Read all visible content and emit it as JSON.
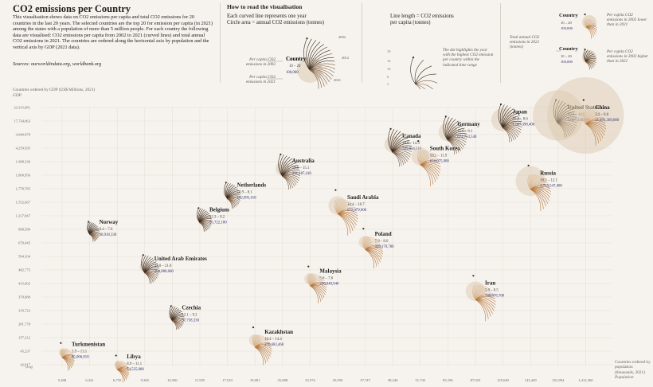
{
  "header": {
    "title": "CO2 emissions per Country",
    "intro": "This visualisation shows data on CO2 emissions per capita and total CO2 emissions for 20 countries in the last 20 years. The selected countries are the top 20 for emission per capita (in 2021) among the states with a population of more than 5 million people. For each country the following data are visualised: CO2 emissions per capita from 2002 to 2021 (curved lines) and total annual CO2 emissions in 2021. The countries are ordered along the horizontal axis by population and the vertical axis by GDP (2021 data).",
    "sources": "Sources: ourworldindata.org, worldbank.org"
  },
  "howto": {
    "title": "How to read the visualisation",
    "line1": "Each curved line represents one year",
    "line2": "Circle area = annual CO2 emissions (tonnes)",
    "line3": "Line length = CO2 emissions",
    "line4": "per capita (tonnes)",
    "example_country": "Country",
    "example_range": "10 – 20",
    "example_total": "100,000",
    "year_2002": "2002",
    "year_2012": "2012",
    "year_2021": "2021",
    "note_2002": "Per capita CO2 emissions in 2002",
    "note_2021": "Per capita CO2 emissions in 2021",
    "dot_note": "The dot highlights the year with the highest CO2 emission per country within the indicated time range",
    "scale_ticks": [
      "18",
      "14",
      "10",
      "6",
      "2"
    ]
  },
  "legend": {
    "country": "Country",
    "range": "10 – 20",
    "total": "100,000",
    "total_note": "Total annual CO2 emissions in 2021 (tonnes)",
    "lower_note": "Per capita CO2 emissions in 2002 lower than in 2021",
    "higher_note": "Per capita CO2 emissions in 2002 higher than in 2021"
  },
  "axes": {
    "y_title": "Countries ordered by GDP (US$ Millions, 2021)",
    "y_unit": "GDP",
    "y_ticks": [
      "23,315,081",
      "17,734,063",
      "4,940,878",
      "4,259,935",
      "1,988,336",
      "1,800,956",
      "1,778,785",
      "1,552,667",
      "1,317,847",
      "868,586",
      "679,445",
      "594,104",
      "482,775",
      "415,002",
      "370,680",
      "319,723",
      "281,778",
      "157,212",
      "45,237",
      "42,817"
    ],
    "y_bottom_note": "(avg)",
    "x_title": "Countries ordered by population (thousands, 2021)",
    "x_unit": "Population",
    "x_ticks": [
      "5,408",
      "6,341",
      "6,735",
      "9,365",
      "10,506",
      "11,935",
      "17,533",
      "19,001",
      "25,688",
      "33,574",
      "35,950",
      "37,747",
      "38,246",
      "51,745",
      "83,196",
      "87,923",
      "125,682",
      "143,449",
      "331,894",
      "1,412,360"
    ]
  },
  "chart_data": {
    "type": "scatter",
    "title": "CO2 emissions per Country",
    "xlabel": "Countries ordered by population (thousands, 2021)",
    "ylabel": "Countries ordered by GDP (US$ Millions, 2021)",
    "points": [
      {
        "name": "Turkmenistan",
        "range": "5.9 – 13.1",
        "total": "85,006,810",
        "x_rank": 1,
        "y_rank": 2,
        "trend": "up",
        "emis": 85006810
      },
      {
        "name": "Norway",
        "range": "9.4 – 7.6",
        "total": "40,918,330",
        "x_rank": 2,
        "y_rank": 12,
        "trend": "down",
        "emis": 40918330
      },
      {
        "name": "Libya",
        "range": "8.9 – 11.1",
        "total": "74,525,080",
        "x_rank": 3,
        "y_rank": 1,
        "trend": "up",
        "emis": 74525080
      },
      {
        "name": "United Arab Emirates",
        "range": "23.0 – 21.8",
        "total": "204,086,660",
        "x_rank": 4,
        "y_rank": 9,
        "trend": "down",
        "emis": 204086660
      },
      {
        "name": "Czechia",
        "range": "12.1 – 9.2",
        "total": "97,758,330",
        "x_rank": 5,
        "y_rank": 5,
        "trend": "down",
        "emis": 97758330
      },
      {
        "name": "Belgium",
        "range": "12.3 – 8.2",
        "total": "95,722,180",
        "x_rank": 6,
        "y_rank": 13,
        "trend": "down",
        "emis": 95722180
      },
      {
        "name": "Netherlands",
        "range": "10.9 – 8.1",
        "total": "142,095,410",
        "x_rank": 7,
        "y_rank": 15,
        "trend": "down",
        "emis": 142095410
      },
      {
        "name": "Kazakhstan",
        "range": "10.4 – 14.4",
        "total": "276,683,460",
        "x_rank": 8,
        "y_rank": 3,
        "trend": "up",
        "emis": 276683460
      },
      {
        "name": "Australia",
        "range": "18.6 – 15.1",
        "total": "391,187,410",
        "x_rank": 9,
        "y_rank": 17,
        "trend": "down",
        "emis": 391187410
      },
      {
        "name": "Malaysia",
        "range": "5.6 – 7.6",
        "total": "256,048,940",
        "x_rank": 10,
        "y_rank": 8,
        "trend": "up",
        "emis": 256048940
      },
      {
        "name": "Saudi Arabia",
        "range": "14.4 – 18.7",
        "total": "672,379,900",
        "x_rank": 11,
        "y_rank": 14,
        "trend": "up",
        "emis": 672379900
      },
      {
        "name": "Poland",
        "range": "7.9 – 8.6",
        "total": "328,179,780",
        "x_rank": 12,
        "y_rank": 11,
        "trend": "up",
        "emis": 328179780
      },
      {
        "name": "Canada",
        "range": "18.0 – 14.3",
        "total": "545,634,510",
        "x_rank": 13,
        "y_rank": 19,
        "trend": "down",
        "emis": 545634510
      },
      {
        "name": "South Korea",
        "range": "10.1 – 11.9",
        "total": "616,075,000",
        "x_rank": 14,
        "y_rank": 18,
        "trend": "up",
        "emis": 616075000
      },
      {
        "name": "Germany",
        "range": "11.6 – 8.1",
        "total": "674,753,540",
        "x_rank": 15,
        "y_rank": 20,
        "trend": "down",
        "emis": 674753540
      },
      {
        "name": "Iran",
        "range": "5.9 – 8.5",
        "total": "748,878,700",
        "x_rank": 16,
        "y_rank": 7,
        "trend": "up",
        "emis": 748878700
      },
      {
        "name": "Japan",
        "range": "10.0 – 8.6",
        "total": "1,067,398,400",
        "x_rank": 17,
        "y_rank": 21,
        "trend": "down",
        "emis": 1067398400
      },
      {
        "name": "Russia",
        "range": "10.3 – 12.1",
        "total": "1,755,547,400",
        "x_rank": 18,
        "y_rank": 16,
        "trend": "up",
        "emis": 1755547400
      },
      {
        "name": "United States",
        "range": "20.6 – 14.9",
        "total": "5,007,336,000",
        "x_rank": 19,
        "y_rank": 22,
        "trend": "down",
        "emis": 5007336000
      },
      {
        "name": "China",
        "range": "3.2 – 8.0",
        "total": "11,472,369,000",
        "x_rank": 20,
        "y_rank": 22,
        "trend": "up",
        "emis": 11472369000
      }
    ]
  },
  "colors": {
    "background": "#f6f3ee",
    "down_stroke": "#3a2a1e",
    "up_stroke": "#b7773c",
    "circle_fill": "#dcc9b0",
    "grid": "#e4ddd2",
    "label": "#222222",
    "total": "#2b2f70"
  }
}
